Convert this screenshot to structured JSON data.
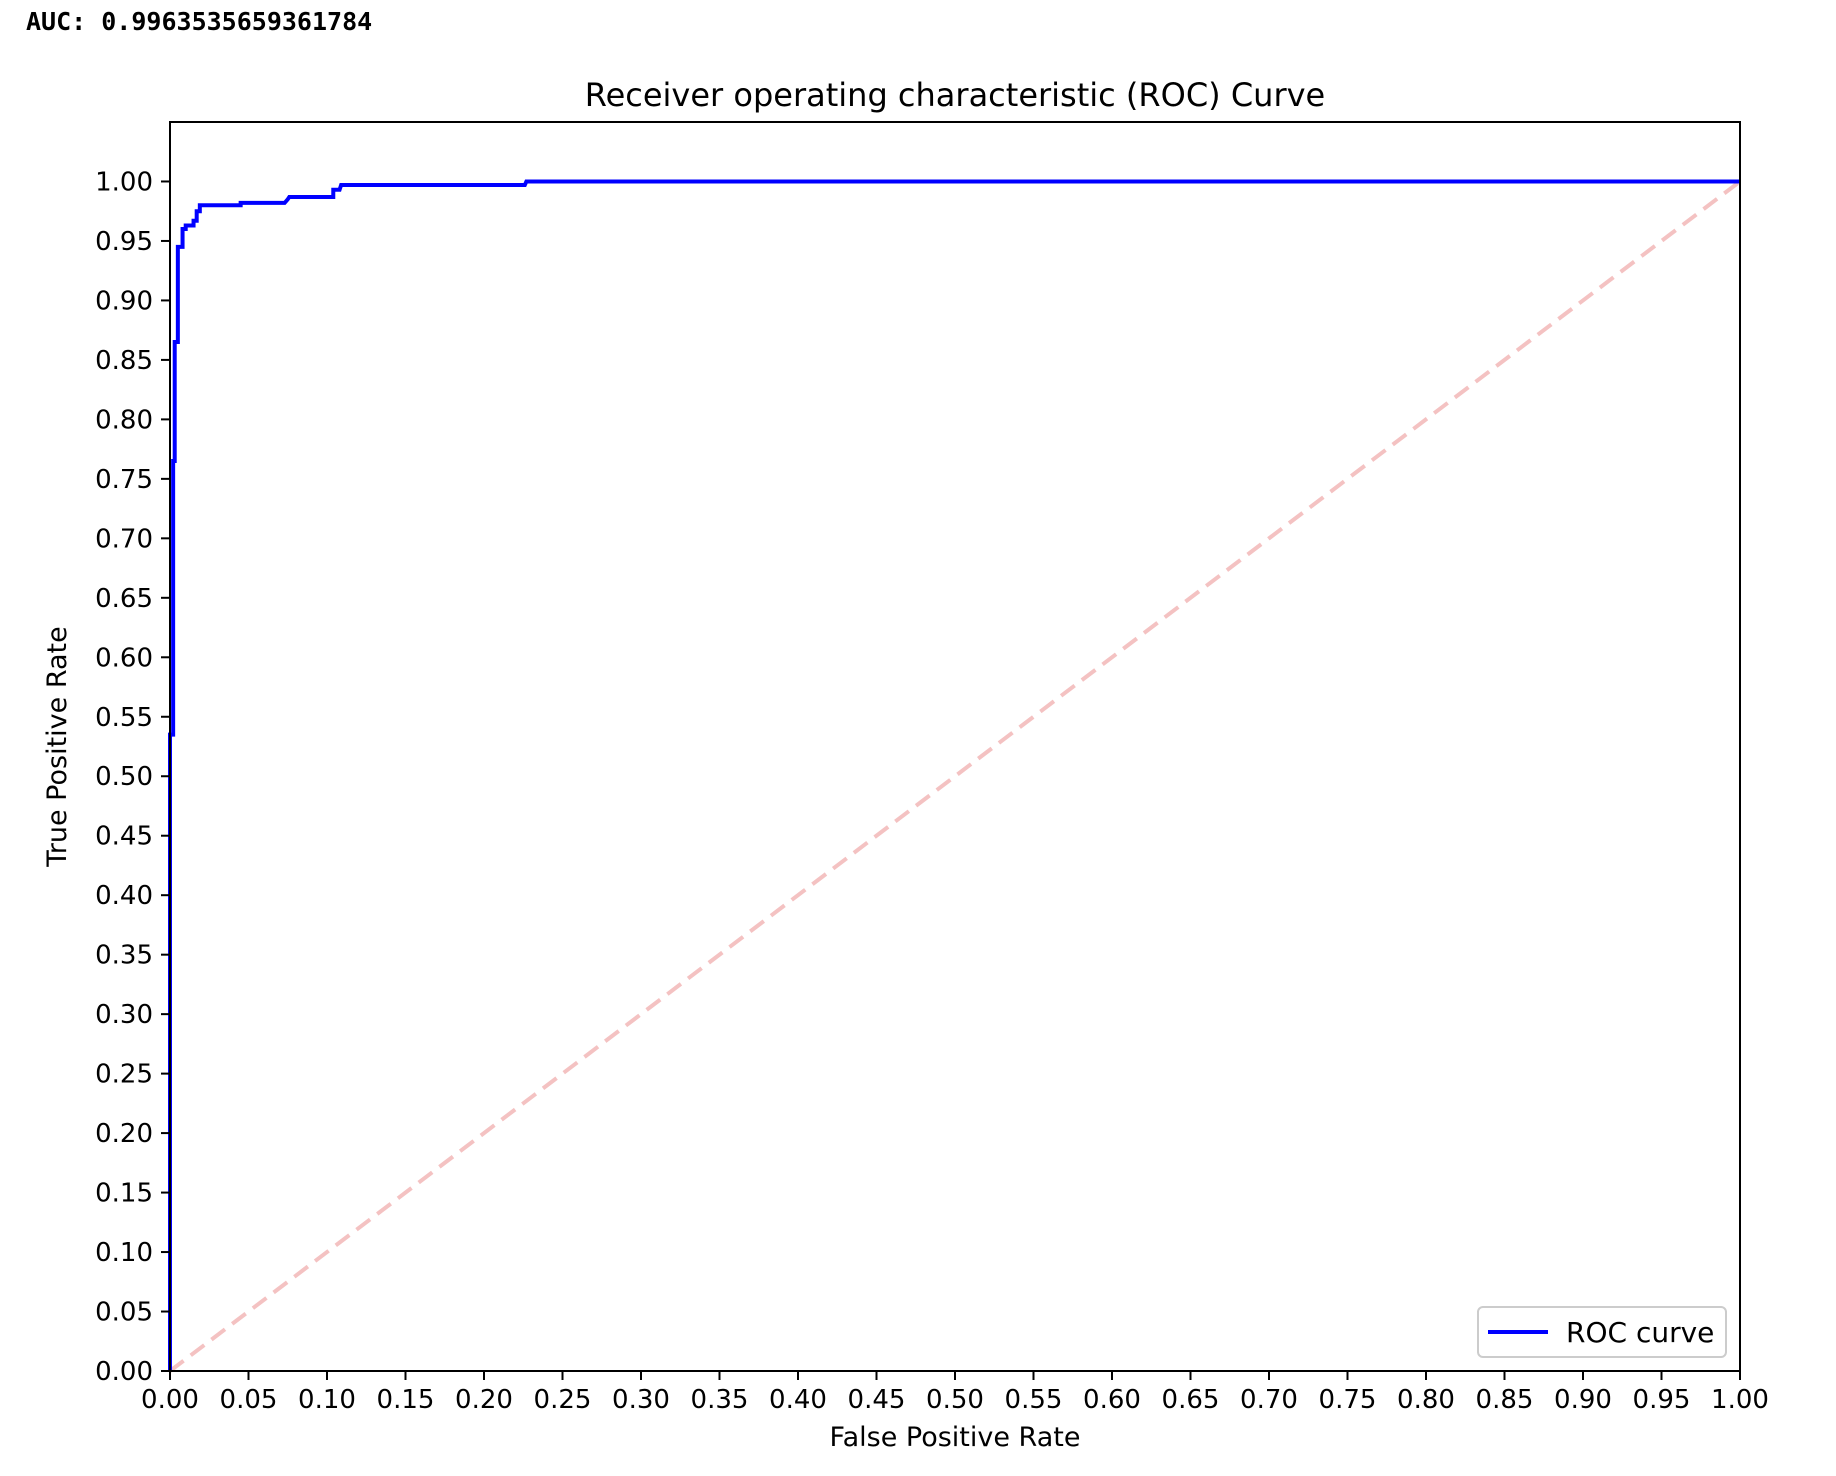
{
  "output": {
    "auc_text": "AUC: 0.9963535659361784"
  },
  "chart_data": {
    "type": "line",
    "title": "Receiver operating characteristic (ROC) Curve",
    "xlabel": "False Positive Rate",
    "ylabel": "True Positive Rate",
    "xlim": [
      0,
      1
    ],
    "ylim": [
      0,
      1.05
    ],
    "xticks": [
      "0.00",
      "0.05",
      "0.10",
      "0.15",
      "0.20",
      "0.25",
      "0.30",
      "0.35",
      "0.40",
      "0.45",
      "0.50",
      "0.55",
      "0.60",
      "0.65",
      "0.70",
      "0.75",
      "0.80",
      "0.85",
      "0.90",
      "0.95",
      "1.00"
    ],
    "yticks": [
      "0.00",
      "0.05",
      "0.10",
      "0.15",
      "0.20",
      "0.25",
      "0.30",
      "0.35",
      "0.40",
      "0.45",
      "0.50",
      "0.55",
      "0.60",
      "0.65",
      "0.70",
      "0.75",
      "0.80",
      "0.85",
      "0.90",
      "0.95",
      "1.00"
    ],
    "grid": false,
    "legend_position": "lower-right",
    "series": [
      {
        "name": "ROC curve",
        "color": "#0000ff",
        "style": "solid",
        "x": [
          0.0,
          0.0,
          0.002,
          0.002,
          0.003,
          0.003,
          0.005,
          0.005,
          0.008,
          0.008,
          0.01,
          0.01,
          0.015,
          0.015,
          0.017,
          0.017,
          0.019,
          0.019,
          0.045,
          0.045,
          0.073,
          0.075,
          0.076,
          0.104,
          0.104,
          0.108,
          0.109,
          0.226,
          0.227,
          1.0
        ],
        "y": [
          0.0,
          0.535,
          0.535,
          0.765,
          0.765,
          0.865,
          0.865,
          0.945,
          0.945,
          0.96,
          0.96,
          0.963,
          0.963,
          0.967,
          0.967,
          0.975,
          0.975,
          0.98,
          0.98,
          0.982,
          0.982,
          0.985,
          0.987,
          0.987,
          0.993,
          0.993,
          0.997,
          0.997,
          1.0,
          1.0
        ]
      },
      {
        "name": "",
        "color": "#f4c2c2",
        "style": "dashed",
        "x": [
          0,
          1
        ],
        "y": [
          0,
          1
        ]
      }
    ]
  }
}
